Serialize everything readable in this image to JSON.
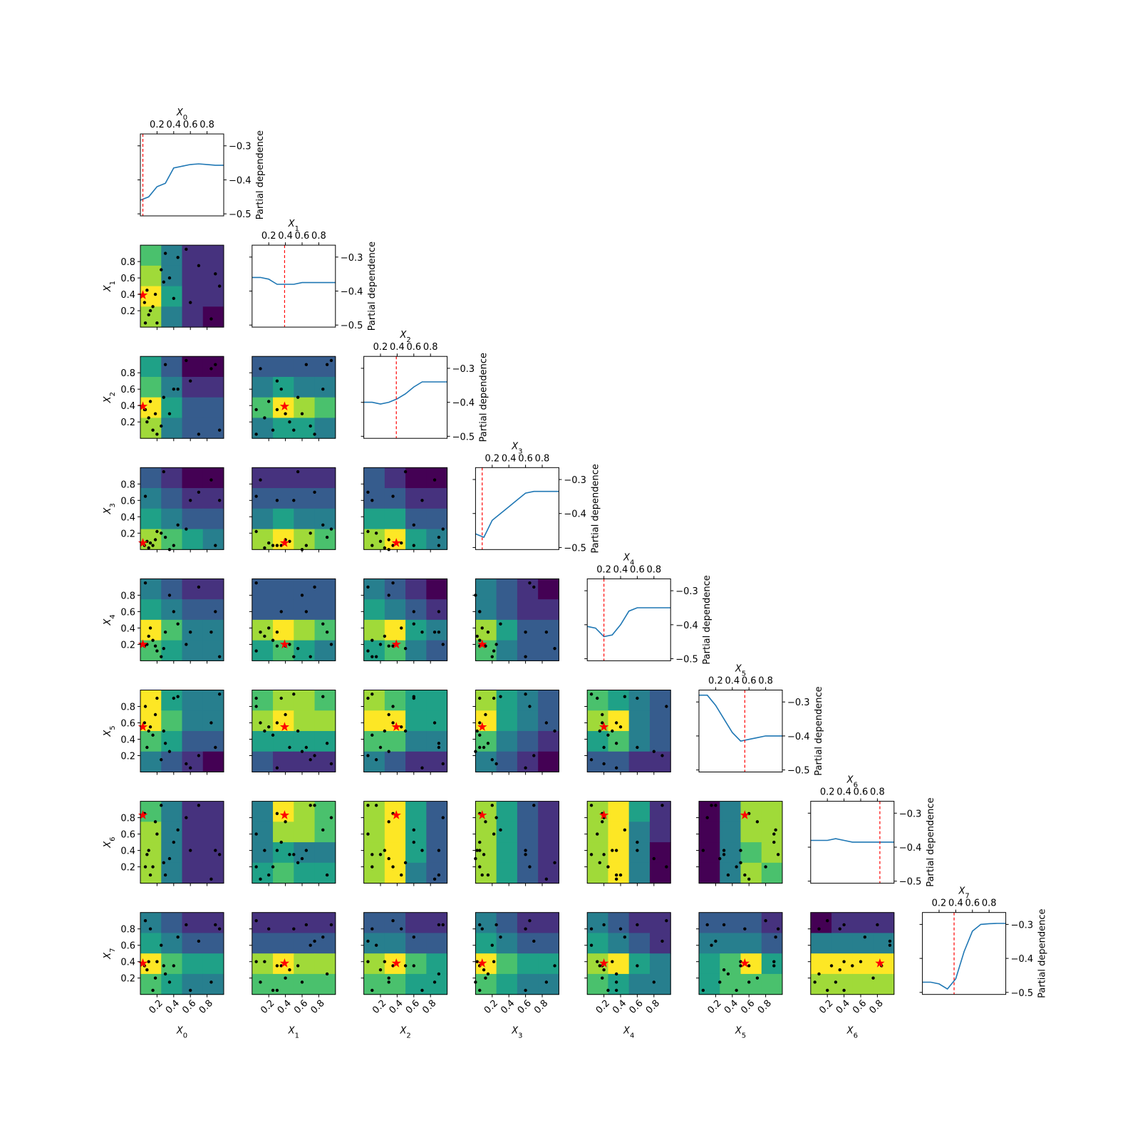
{
  "chart_data": {
    "type": "objective_matrix",
    "dimensions": [
      "X0",
      "X1",
      "X2",
      "X3",
      "X4",
      "X5",
      "X6",
      "X7"
    ],
    "pd_label": "Partial dependence",
    "lim": [
      0,
      1
    ],
    "ticks": [
      0.2,
      0.4,
      0.6,
      0.8
    ],
    "pd_ylim": [
      -0.506,
      -0.265
    ],
    "pd_yticks": [
      {
        "value": -0.3,
        "label": "−0.3"
      },
      {
        "value": -0.4,
        "label": "−0.4"
      },
      {
        "value": -0.5,
        "label": "−0.5"
      }
    ],
    "line_color": "#1f77b4",
    "best_color": "red",
    "sample_color": "black",
    "colormap": [
      "#440154",
      "#46327e",
      "#365c8d",
      "#277f8e",
      "#1fa187",
      "#4ac16d",
      "#a0da39",
      "#fde725"
    ],
    "best": [
      0.03,
      0.39,
      0.39,
      0.08,
      0.2,
      0.55,
      0.83,
      0.38
    ],
    "samples": [
      [
        0.05,
        0.3,
        0.35,
        0.05,
        0.18,
        0.6,
        0.85,
        0.35
      ],
      [
        0.1,
        0.15,
        0.25,
        0.02,
        0.3,
        0.5,
        0.4,
        0.4
      ],
      [
        0.08,
        0.45,
        0.2,
        0.1,
        0.2,
        0.3,
        0.35,
        0.3
      ],
      [
        0.15,
        0.25,
        0.1,
        0.05,
        0.25,
        0.45,
        0.2,
        0.05
      ],
      [
        0.2,
        0.05,
        0.05,
        0.22,
        0.12,
        0.9,
        0.6,
        0.4
      ],
      [
        0.3,
        0.9,
        0.9,
        0.15,
        0.35,
        0.35,
        0.1,
        0.25
      ],
      [
        0.35,
        0.6,
        0.3,
        0.0,
        0.8,
        0.25,
        0.3,
        0.15
      ],
      [
        0.12,
        0.2,
        0.45,
        0.08,
        0.4,
        0.55,
        0.1,
        0.8
      ],
      [
        0.25,
        0.7,
        0.15,
        0.2,
        0.05,
        0.15,
        0.95,
        0.6
      ],
      [
        0.4,
        0.35,
        0.6,
        0.05,
        0.6,
        0.9,
        0.5,
        0.35
      ],
      [
        0.55,
        0.95,
        0.95,
        0.25,
        0.2,
        0.1,
        0.8,
        0.85
      ],
      [
        0.6,
        0.3,
        0.7,
        0.6,
        0.35,
        0.05,
        0.4,
        0.05
      ],
      [
        0.7,
        0.75,
        0.05,
        0.7,
        0.9,
        0.2,
        0.95,
        0.65
      ],
      [
        0.85,
        0.1,
        0.85,
        0.85,
        0.35,
        0.6,
        0.05,
        0.15
      ],
      [
        0.95,
        0.5,
        0.1,
        0.6,
        0.05,
        0.95,
        0.35,
        0.8
      ],
      [
        0.9,
        0.65,
        0.9,
        0.05,
        0.6,
        0.3,
        0.4,
        0.85
      ],
      [
        0.18,
        0.4,
        0.3,
        0.12,
        0.18,
        0.7,
        0.75,
        0.2
      ],
      [
        0.28,
        0.55,
        0.5,
        0.95,
        0.15,
        0.5,
        0.25,
        0.35
      ],
      [
        0.45,
        0.85,
        0.6,
        0.3,
        0.45,
        0.92,
        0.65,
        0.7
      ],
      [
        0.06,
        0.05,
        0.35,
        0.65,
        0.95,
        0.8,
        0.2,
        0.9
      ]
    ],
    "pd_x": [
      0,
      0.1,
      0.2,
      0.3,
      0.4,
      0.5,
      0.6,
      0.7,
      0.8,
      0.9,
      1.0
    ],
    "diagonal": [
      [
        -0.46,
        -0.45,
        -0.42,
        -0.41,
        -0.365,
        -0.36,
        -0.355,
        -0.353,
        -0.355,
        -0.357,
        -0.357
      ],
      [
        -0.36,
        -0.36,
        -0.365,
        -0.38,
        -0.38,
        -0.38,
        -0.375,
        -0.375,
        -0.375,
        -0.375,
        -0.375
      ],
      [
        -0.4,
        -0.4,
        -0.405,
        -0.4,
        -0.39,
        -0.375,
        -0.355,
        -0.34,
        -0.34,
        -0.34,
        -0.34
      ],
      [
        -0.46,
        -0.47,
        -0.42,
        -0.4,
        -0.38,
        -0.36,
        -0.34,
        -0.335,
        -0.335,
        -0.335,
        -0.335
      ],
      [
        -0.405,
        -0.41,
        -0.435,
        -0.43,
        -0.4,
        -0.36,
        -0.35,
        -0.35,
        -0.35,
        -0.35,
        -0.35
      ],
      [
        -0.28,
        -0.28,
        -0.31,
        -0.35,
        -0.39,
        -0.415,
        -0.41,
        -0.405,
        -0.4,
        -0.4,
        -0.4
      ],
      [
        -0.38,
        -0.38,
        -0.38,
        -0.375,
        -0.38,
        -0.385,
        -0.385,
        -0.385,
        -0.385,
        -0.385,
        -0.385
      ],
      [
        -0.47,
        -0.47,
        -0.475,
        -0.49,
        -0.46,
        -0.38,
        -0.32,
        -0.3,
        -0.298,
        -0.297,
        -0.297
      ]
    ],
    "contours": [
      [
        [
          5,
          3,
          1,
          1
        ],
        [
          6,
          3,
          1,
          1
        ],
        [
          7,
          4,
          1,
          1
        ],
        [
          6,
          3,
          1,
          0
        ]
      ],
      [
        [
          4,
          2,
          0,
          0
        ],
        [
          5,
          3,
          1,
          1
        ],
        [
          7,
          4,
          2,
          2
        ],
        [
          6,
          3,
          2,
          2
        ]
      ],
      [
        [
          2,
          2,
          2,
          2
        ],
        [
          3,
          4,
          3,
          3
        ],
        [
          5,
          7,
          6,
          5
        ],
        [
          3,
          4,
          4,
          3
        ]
      ],
      [
        [
          2,
          1,
          0,
          0
        ],
        [
          3,
          2,
          1,
          1
        ],
        [
          4,
          3,
          2,
          2
        ],
        [
          6,
          5,
          4,
          3
        ]
      ],
      [
        [
          1,
          1,
          1,
          1
        ],
        [
          2,
          2,
          2,
          2
        ],
        [
          3,
          4,
          3,
          3
        ],
        [
          6,
          7,
          6,
          5
        ]
      ],
      [
        [
          2,
          1,
          0,
          0
        ],
        [
          2,
          2,
          1,
          1
        ],
        [
          4,
          4,
          2,
          2
        ],
        [
          6,
          7,
          4,
          3
        ]
      ],
      [
        [
          3,
          2,
          1,
          1
        ],
        [
          4,
          3,
          2,
          2
        ],
        [
          7,
          5,
          3,
          3
        ],
        [
          5,
          4,
          3,
          3
        ]
      ],
      [
        [
          2,
          2,
          2,
          2
        ],
        [
          2,
          2,
          2,
          2
        ],
        [
          6,
          7,
          6,
          5
        ],
        [
          4,
          5,
          4,
          3
        ]
      ],
      [
        [
          3,
          2,
          1,
          0
        ],
        [
          4,
          3,
          2,
          1
        ],
        [
          6,
          7,
          4,
          3
        ],
        [
          4,
          5,
          3,
          2
        ]
      ],
      [
        [
          3,
          2,
          1,
          0
        ],
        [
          3,
          2,
          1,
          1
        ],
        [
          6,
          4,
          2,
          2
        ],
        [
          5,
          3,
          2,
          2
        ]
      ],
      [
        [
          7,
          4,
          3,
          3
        ],
        [
          7,
          5,
          3,
          3
        ],
        [
          5,
          4,
          2,
          2
        ],
        [
          3,
          2,
          1,
          0
        ]
      ],
      [
        [
          5,
          6,
          6,
          5
        ],
        [
          6,
          7,
          6,
          6
        ],
        [
          4,
          4,
          4,
          4
        ],
        [
          2,
          1,
          1,
          1
        ]
      ],
      [
        [
          6,
          5,
          4,
          4
        ],
        [
          7,
          7,
          4,
          4
        ],
        [
          5,
          5,
          3,
          3
        ],
        [
          3,
          2,
          1,
          1
        ]
      ],
      [
        [
          6,
          4,
          3,
          2
        ],
        [
          7,
          4,
          3,
          2
        ],
        [
          5,
          3,
          2,
          1
        ],
        [
          3,
          2,
          1,
          0
        ]
      ],
      [
        [
          5,
          4,
          3,
          2
        ],
        [
          6,
          7,
          3,
          2
        ],
        [
          4,
          5,
          3,
          2
        ],
        [
          2,
          2,
          1,
          1
        ]
      ],
      [
        [
          5,
          3,
          1,
          1
        ],
        [
          6,
          3,
          1,
          1
        ],
        [
          6,
          3,
          1,
          1
        ],
        [
          6,
          3,
          1,
          1
        ]
      ],
      [
        [
          3,
          7,
          6,
          5
        ],
        [
          3,
          6,
          6,
          5
        ],
        [
          3,
          4,
          3,
          3
        ],
        [
          4,
          5,
          4,
          4
        ]
      ],
      [
        [
          6,
          7,
          4,
          2
        ],
        [
          6,
          7,
          4,
          2
        ],
        [
          6,
          7,
          4,
          2
        ],
        [
          6,
          7,
          3,
          2
        ]
      ],
      [
        [
          6,
          4,
          2,
          1
        ],
        [
          6,
          4,
          2,
          1
        ],
        [
          6,
          4,
          2,
          1
        ],
        [
          6,
          4,
          2,
          1
        ]
      ],
      [
        [
          6,
          7,
          4,
          1
        ],
        [
          6,
          7,
          3,
          1
        ],
        [
          6,
          7,
          3,
          0
        ],
        [
          6,
          7,
          3,
          0
        ]
      ],
      [
        [
          0,
          3,
          6,
          6
        ],
        [
          0,
          3,
          6,
          6
        ],
        [
          0,
          3,
          5,
          6
        ],
        [
          0,
          3,
          6,
          5
        ]
      ],
      [
        [
          3,
          2,
          1,
          1
        ],
        [
          4,
          3,
          2,
          2
        ],
        [
          7,
          5,
          4,
          4
        ],
        [
          5,
          4,
          3,
          3
        ]
      ],
      [
        [
          1,
          1,
          1,
          1
        ],
        [
          2,
          2,
          2,
          2
        ],
        [
          6,
          7,
          6,
          6
        ],
        [
          5,
          5,
          5,
          5
        ]
      ],
      [
        [
          2,
          2,
          1,
          1
        ],
        [
          3,
          3,
          2,
          2
        ],
        [
          6,
          7,
          5,
          4
        ],
        [
          5,
          5,
          4,
          4
        ]
      ],
      [
        [
          3,
          2,
          1,
          1
        ],
        [
          4,
          3,
          2,
          2
        ],
        [
          7,
          5,
          4,
          4
        ],
        [
          5,
          4,
          3,
          3
        ]
      ],
      [
        [
          3,
          2,
          1,
          1
        ],
        [
          4,
          3,
          2,
          1
        ],
        [
          6,
          7,
          4,
          3
        ],
        [
          5,
          4,
          3,
          3
        ]
      ],
      [
        [
          2,
          2,
          2,
          1
        ],
        [
          3,
          3,
          3,
          2
        ],
        [
          4,
          5,
          7,
          4
        ],
        [
          4,
          5,
          5,
          5
        ]
      ],
      [
        [
          0,
          1,
          1,
          1
        ],
        [
          3,
          3,
          3,
          3
        ],
        [
          7,
          7,
          7,
          7
        ],
        [
          6,
          6,
          6,
          6
        ]
      ]
    ]
  }
}
